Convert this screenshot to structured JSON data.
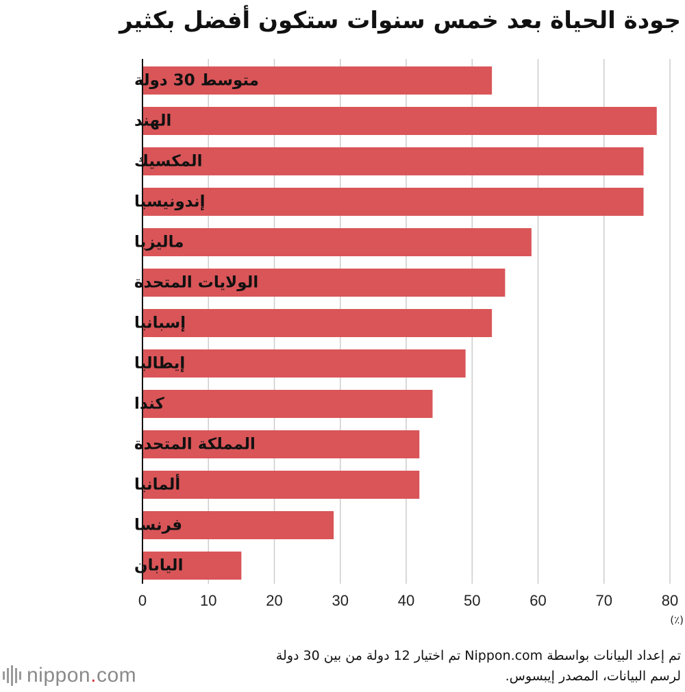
{
  "chart_data": {
    "type": "bar",
    "orientation": "horizontal",
    "title": "جودة الحياة بعد خمس سنوات ستكون أفضل بكثير",
    "categories": [
      "متوسط 30 دولة",
      "الهند",
      "المكسيك",
      "إندونيسيا",
      "ماليزيا",
      "الولايات المتحدة",
      "إسبانيا",
      "إيطاليا",
      "كندا",
      "المملكة المتحدة",
      "ألمانيا",
      "فرنسا",
      "اليابان"
    ],
    "values": [
      53,
      78,
      76,
      76,
      59,
      55,
      53,
      49,
      44,
      42,
      42,
      29,
      15
    ],
    "xlim": [
      0,
      80
    ],
    "ticks": [
      0,
      10,
      20,
      30,
      40,
      50,
      60,
      70,
      80
    ],
    "tick_labels": [
      "0",
      "10",
      "20",
      "30",
      "40",
      "50",
      "60",
      "70",
      "80"
    ],
    "unit_label": "(٪)",
    "bar_color": "#d95558",
    "grid_color": "#cccccc",
    "grid": true
  },
  "source": {
    "line1": "تم إعداد البيانات بواسطة Nippon.com تم اختيار 12 دولة من بين 30 دولة",
    "line2": "لرسم البيانات، المصدر إيبسوس."
  },
  "logo": {
    "name": "nippon",
    "dot": ".",
    "suffix": "com"
  }
}
